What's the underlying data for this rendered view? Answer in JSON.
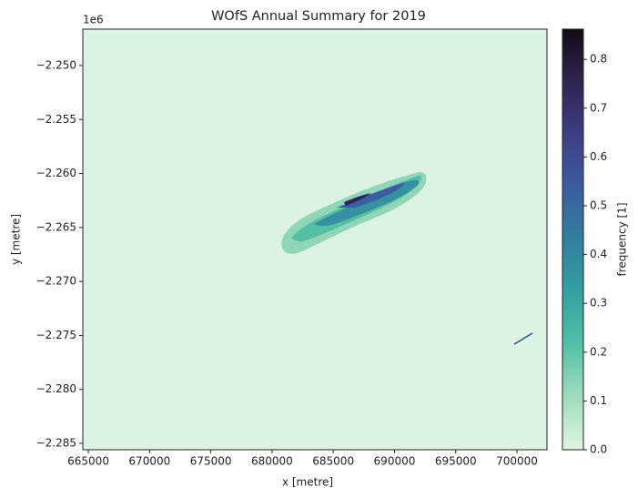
{
  "chart_data": {
    "type": "image",
    "title": "WOfS Annual Summary for 2019",
    "x_label": "x [metre]",
    "y_label": "y [metre]",
    "y_offset_label": "1e6",
    "colorbar_label": "frequency [1]",
    "background_color": "#dcf2e3",
    "colormap": [
      "#e0f5e1",
      "#9fdcbc",
      "#52c0a6",
      "#34a0a2",
      "#3180a0",
      "#3c5da0",
      "#3d3f86",
      "#2f2553",
      "#140b16"
    ],
    "xlim": [
      664550,
      702450
    ],
    "xticks": [
      665000,
      670000,
      675000,
      680000,
      685000,
      690000,
      695000,
      700000
    ],
    "ylim": [
      -2285590,
      -2246630
    ],
    "yticks": [
      {
        "value": -2250000,
        "label": "−2.250"
      },
      {
        "value": -2255000,
        "label": "−2.255"
      },
      {
        "value": -2260000,
        "label": "−2.260"
      },
      {
        "value": -2265000,
        "label": "−2.265"
      },
      {
        "value": -2270000,
        "label": "−2.270"
      },
      {
        "value": -2275000,
        "label": "−2.275"
      },
      {
        "value": -2280000,
        "label": "−2.280"
      },
      {
        "value": -2285000,
        "label": "−2.285"
      }
    ],
    "clim": [
      0,
      0.862
    ],
    "cticks": [
      {
        "value": 0,
        "label": "0.0"
      },
      {
        "value": 0.1,
        "label": "0.1"
      },
      {
        "value": 0.2,
        "label": "0.2"
      },
      {
        "value": 0.3,
        "label": "0.3"
      },
      {
        "value": 0.4,
        "label": "0.4"
      },
      {
        "value": 0.5,
        "label": "0.5"
      },
      {
        "value": 0.6,
        "label": "0.6"
      },
      {
        "value": 0.7,
        "label": "0.7"
      },
      {
        "value": 0.8,
        "label": "0.8"
      }
    ]
  }
}
